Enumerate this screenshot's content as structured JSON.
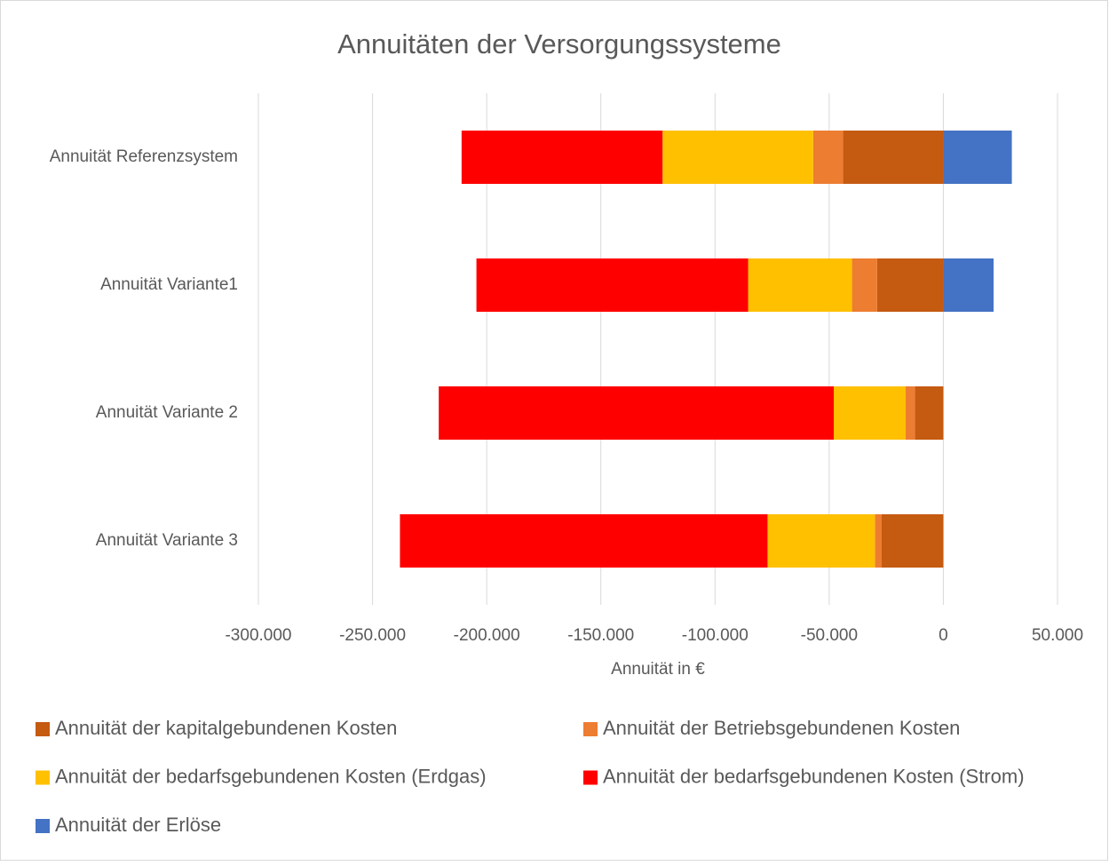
{
  "chart_data": {
    "type": "stacked_barh",
    "title": "Annuitäten der Versorgungssysteme",
    "x_label": "Annuität in €",
    "categories": [
      "Annuität Referenzsystem",
      "Annuität Variante1",
      "Annuität Variante 2",
      "Annuität Variante 3"
    ],
    "series": [
      {
        "name": "Annuität der kapitalgebundenen Kosten",
        "color": "#c55a11",
        "values": [
          -44000,
          -29000,
          -12500,
          -27000
        ]
      },
      {
        "name": "Annuität der Betriebsgebundenen Kosten",
        "color": "#ed7d31",
        "values": [
          -13000,
          -11000,
          -4000,
          -3000
        ]
      },
      {
        "name": "Annuität der bedarfsgebundenen Kosten (Erdgas)",
        "color": "#ffc000",
        "values": [
          -66000,
          -45500,
          -31500,
          -47000
        ]
      },
      {
        "name": "Annuität der bedarfsgebundenen Kosten (Strom)",
        "color": "#ff0000",
        "values": [
          -88000,
          -119000,
          -173000,
          -161000
        ]
      },
      {
        "name": "Annuität der Erlöse",
        "color": "#4472c4",
        "values": [
          30000,
          22000,
          0,
          0
        ]
      }
    ],
    "xlim": [
      -300000,
      50000
    ],
    "xticks": [
      {
        "value": -300000,
        "label": "-300.000"
      },
      {
        "value": -250000,
        "label": "-250.000"
      },
      {
        "value": -200000,
        "label": "-200.000"
      },
      {
        "value": -150000,
        "label": "-150.000"
      },
      {
        "value": -100000,
        "label": "-100.000"
      },
      {
        "value": -50000,
        "label": "-50.000"
      },
      0,
      {
        "value": 50000,
        "label": "50.000"
      }
    ],
    "grid": true,
    "legend": "bottom"
  }
}
